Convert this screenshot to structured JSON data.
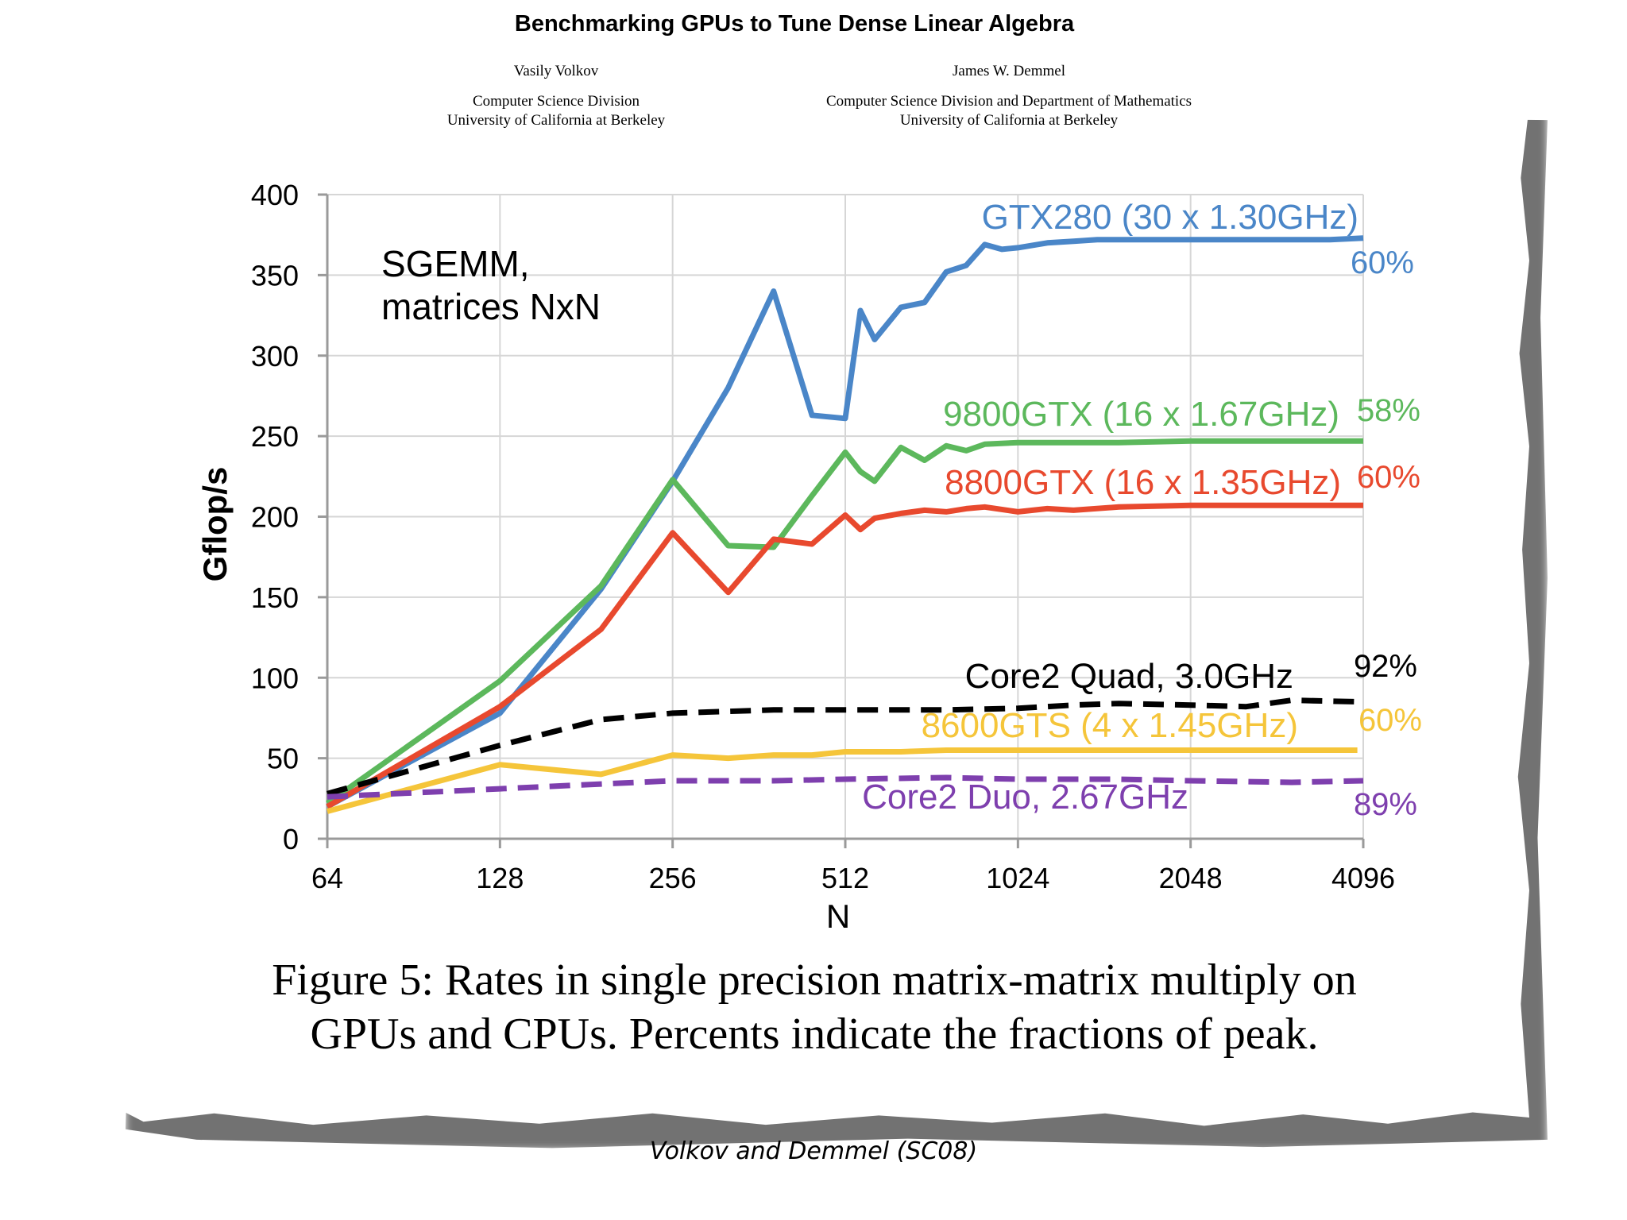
{
  "paper": {
    "title": "Benchmarking GPUs to Tune Dense Linear Algebra",
    "authors": [
      {
        "name": "Vasily Volkov",
        "affiliation_1": "Computer Science Division",
        "affiliation_2": "University of California at Berkeley"
      },
      {
        "name": "James W. Demmel",
        "affiliation_1": "Computer Science Division and Department of Mathematics",
        "affiliation_2": "University of California at Berkeley"
      }
    ],
    "caption_line_1": "Figure 5: Rates in single precision matrix-matrix multiply on",
    "caption_line_2": "GPUs and CPUs. Percents indicate the fractions of peak.",
    "source": "Volkov and Demmel (SC08)"
  },
  "chart_data": {
    "type": "line",
    "title": "SGEMM, matrices NxN",
    "title_line_1": "SGEMM,",
    "title_line_2": "matrices NxN",
    "xlabel": "N",
    "ylabel": "Gflop/s",
    "xscale": "log2",
    "xlim": [
      64,
      4096
    ],
    "ylim": [
      0,
      400
    ],
    "xticks": [
      64,
      128,
      256,
      512,
      1024,
      2048,
      4096
    ],
    "xtick_labels": [
      "64",
      "128",
      "256",
      "512",
      "1024",
      "2048",
      "4096"
    ],
    "yticks": [
      0,
      50,
      100,
      150,
      200,
      250,
      300,
      350,
      400
    ],
    "ytick_labels": [
      "0",
      "50",
      "100",
      "150",
      "200",
      "250",
      "300",
      "350",
      "400"
    ],
    "grid": true,
    "series": [
      {
        "name": "GTX280 (30 x 1.30GHz)",
        "peak_label": "60%",
        "color": "#4a86c8",
        "dash": "solid",
        "x": [
          64,
          128,
          192,
          256,
          320,
          384,
          448,
          512,
          544,
          576,
          640,
          704,
          768,
          832,
          896,
          960,
          1024,
          1152,
          1280,
          1408,
          1536,
          2048,
          2560,
          3072,
          3584,
          4096
        ],
        "values": [
          20,
          78,
          155,
          222,
          280,
          340,
          263,
          261,
          328,
          310,
          330,
          333,
          352,
          356,
          369,
          366,
          367,
          370,
          371,
          372,
          372,
          372,
          372,
          372,
          372,
          373
        ]
      },
      {
        "name": "9800GTX (16 x 1.67GHz)",
        "peak_label": "58%",
        "color": "#5cb85c",
        "dash": "solid",
        "x": [
          64,
          128,
          192,
          256,
          320,
          384,
          448,
          512,
          544,
          576,
          640,
          704,
          768,
          832,
          896,
          1024,
          1536,
          2048,
          3072,
          4096
        ],
        "values": [
          22,
          98,
          157,
          223,
          182,
          181,
          213,
          240,
          228,
          222,
          243,
          235,
          244,
          241,
          245,
          246,
          246,
          247,
          247,
          247
        ]
      },
      {
        "name": "8800GTX (16 x 1.35GHz)",
        "peak_label": "60%",
        "color": "#e8492e",
        "dash": "solid",
        "x": [
          64,
          128,
          192,
          256,
          320,
          384,
          448,
          512,
          544,
          576,
          640,
          704,
          768,
          832,
          896,
          1024,
          1152,
          1280,
          1536,
          2048,
          2560,
          3072,
          4096
        ],
        "values": [
          20,
          82,
          130,
          190,
          153,
          186,
          183,
          201,
          192,
          199,
          202,
          204,
          203,
          205,
          206,
          203,
          205,
          204,
          206,
          207,
          207,
          207,
          207
        ]
      },
      {
        "name": "Core2 Quad, 3.0GHz",
        "peak_label": "92%",
        "color": "#000000",
        "dash": "dashed",
        "x": [
          64,
          128,
          192,
          256,
          384,
          512,
          768,
          1024,
          1280,
          1536,
          2048,
          2560,
          3072,
          4096
        ],
        "values": [
          28,
          58,
          74,
          78,
          80,
          80,
          80,
          81,
          83,
          84,
          83,
          82,
          86,
          85
        ]
      },
      {
        "name": "8600GTS (4 x 1.45GHz)",
        "peak_label": "60%",
        "color": "#f5c53a",
        "dash": "solid",
        "x": [
          64,
          128,
          192,
          256,
          320,
          384,
          448,
          512,
          640,
          768,
          1024,
          1536,
          2048,
          3072,
          4000
        ],
        "values": [
          17,
          46,
          40,
          52,
          50,
          52,
          52,
          54,
          54,
          55,
          55,
          55,
          55,
          55,
          55
        ]
      },
      {
        "name": "Core2 Duo, 2.67GHz",
        "peak_label": "89%",
        "color": "#7e3fae",
        "dash": "dashed",
        "x": [
          64,
          128,
          192,
          256,
          384,
          512,
          768,
          1024,
          1536,
          2048,
          3072,
          4096
        ],
        "values": [
          26,
          31,
          34,
          36,
          36,
          37,
          38,
          37,
          37,
          36,
          35,
          36
        ]
      }
    ]
  }
}
